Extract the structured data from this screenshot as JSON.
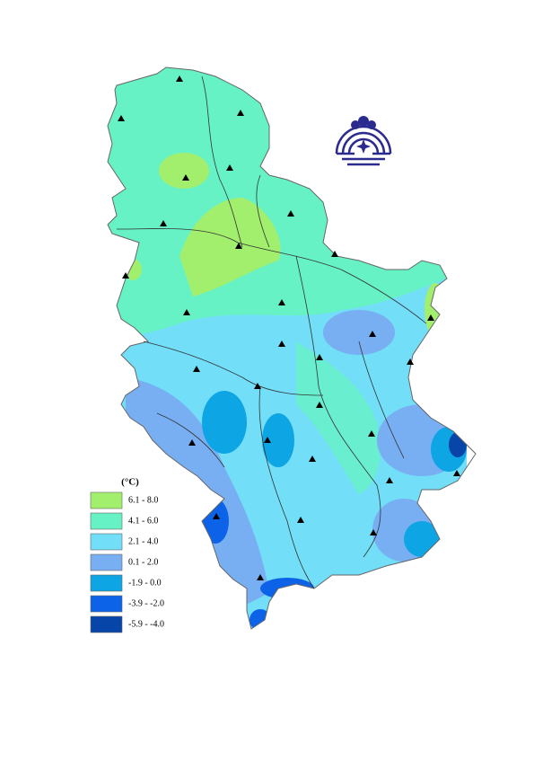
{
  "legend": {
    "title": "(°C)",
    "items": [
      {
        "label": "6.1 - 8.0",
        "color": "#a2ef6e"
      },
      {
        "label": "4.1 - 6.0",
        "color": "#66f2c4"
      },
      {
        "label": "2.1 - 4.0",
        "color": "#72def8"
      },
      {
        "label": "0.1 - 2.0",
        "color": "#78aef2"
      },
      {
        "label": "-1.9 - 0.0",
        "color": "#0ea5e4"
      },
      {
        "label": "-3.9 - -2.0",
        "color": "#0d63e8"
      },
      {
        "label": "-5.9 - -4.0",
        "color": "#0845a8"
      }
    ]
  }
}
